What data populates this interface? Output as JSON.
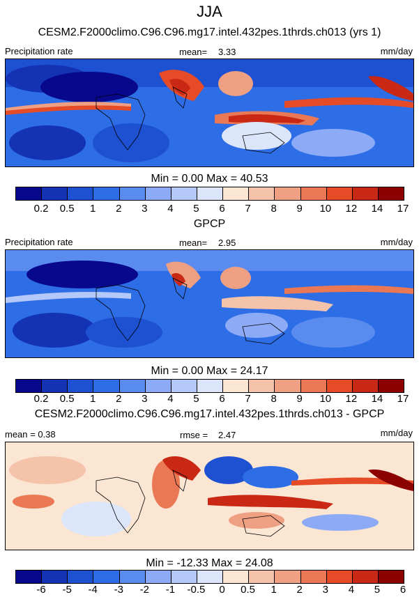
{
  "title": "JJA",
  "panels": [
    {
      "name": "model",
      "title": "CESM2.F2000climo.C96.C96.mg17.intel.432pes.1thrds.ch013 (yrs 1)",
      "left_label": "Precipitation rate",
      "stat_label": "mean=",
      "stat_value": "3.33",
      "units": "mm/day",
      "minmax": "Min =   0.00 Max =  40.53",
      "colorbar_labels": [
        "0.2",
        "0.5",
        "1",
        "2",
        "3",
        "4",
        "5",
        "6",
        "7",
        "8",
        "9",
        "10",
        "12",
        "14",
        "17"
      ],
      "palette": "precip"
    },
    {
      "name": "obs",
      "title": "GPCP",
      "left_label": "Precipitation rate",
      "stat_label": "mean=",
      "stat_value": "2.95",
      "units": "mm/day",
      "minmax": "Min =   0.00 Max =  24.17",
      "colorbar_labels": [
        "0.2",
        "0.5",
        "1",
        "2",
        "3",
        "4",
        "5",
        "6",
        "7",
        "8",
        "9",
        "10",
        "12",
        "14",
        "17"
      ],
      "palette": "precip"
    },
    {
      "name": "diff",
      "title": "CESM2.F2000climo.C96.C96.mg17.intel.432pes.1thrds.ch013 - GPCP",
      "left_label": "mean =   0.38",
      "stat_label": "rmse =",
      "stat_value": "2.47",
      "units": "mm/day",
      "minmax": "Min = -12.33 Max =  24.08",
      "colorbar_labels": [
        "-6",
        "-5",
        "-4",
        "-3",
        "-2",
        "-1",
        "-0.5",
        "0",
        "0.5",
        "1",
        "2",
        "3",
        "4",
        "5",
        "6"
      ],
      "palette": "diff"
    }
  ],
  "colors": {
    "precip": [
      "#08088c",
      "#1432b4",
      "#1e50d2",
      "#2d6ee6",
      "#5a8cf0",
      "#8caaf5",
      "#b4c8fa",
      "#dce6fa",
      "#fae6d2",
      "#f5c3aa",
      "#f0a082",
      "#eb7855",
      "#e64b28",
      "#c82814",
      "#8c0000"
    ],
    "diff": [
      "#08088c",
      "#1432b4",
      "#1e50d2",
      "#2d6ee6",
      "#5a8cf0",
      "#8caaf5",
      "#b4c8fa",
      "#dce6fa",
      "#fae6d2",
      "#f5c3aa",
      "#f0a082",
      "#eb7855",
      "#e64b28",
      "#c82814",
      "#8c0000"
    ]
  },
  "chart_data": [
    {
      "type": "heatmap",
      "title": "CESM2.F2000climo.C96.C96.mg17.intel.432pes.1thrds.ch013 (yrs 1)",
      "variable": "Precipitation rate",
      "units": "mm/day",
      "mean": 3.33,
      "min": 0.0,
      "max": 40.53,
      "levels": [
        0.2,
        0.5,
        1,
        2,
        3,
        4,
        5,
        6,
        7,
        8,
        9,
        10,
        12,
        14,
        17
      ]
    },
    {
      "type": "heatmap",
      "title": "GPCP",
      "variable": "Precipitation rate",
      "units": "mm/day",
      "mean": 2.95,
      "min": 0.0,
      "max": 24.17,
      "levels": [
        0.2,
        0.5,
        1,
        2,
        3,
        4,
        5,
        6,
        7,
        8,
        9,
        10,
        12,
        14,
        17
      ]
    },
    {
      "type": "heatmap",
      "title": "CESM2.F2000climo.C96.C96.mg17.intel.432pes.1thrds.ch013 - GPCP",
      "units": "mm/day",
      "mean": 0.38,
      "rmse": 2.47,
      "min": -12.33,
      "max": 24.08,
      "levels": [
        -6,
        -5,
        -4,
        -3,
        -2,
        -1,
        -0.5,
        0,
        0.5,
        1,
        2,
        3,
        4,
        5,
        6
      ]
    }
  ]
}
